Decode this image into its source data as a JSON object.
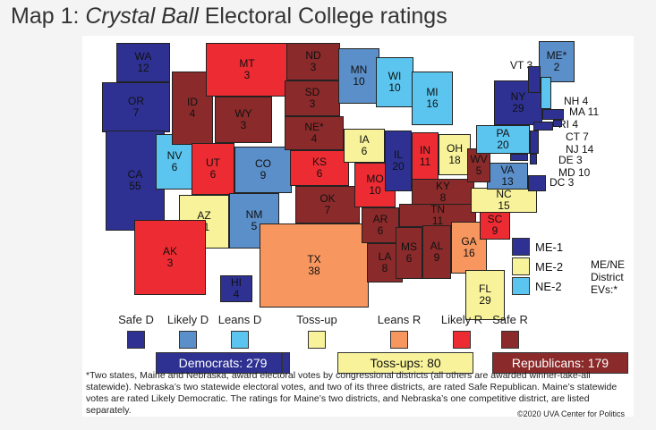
{
  "title": {
    "prefix": "Map 1: ",
    "italic": "Crystal Ball",
    "suffix": " Electoral College ratings"
  },
  "colors": {
    "safe_d": "#2e3192",
    "likely_d": "#5b8fc9",
    "leans_d": "#5bc5ef",
    "toss_up": "#f8f39a",
    "leans_r": "#f7975f",
    "likely_r": "#ed2b32",
    "safe_r": "#8b2a2a"
  },
  "states": [
    {
      "abbr": "WA",
      "ev": "12",
      "rating": "safe_d"
    },
    {
      "abbr": "OR",
      "ev": "7",
      "rating": "safe_d"
    },
    {
      "abbr": "CA",
      "ev": "55",
      "rating": "safe_d"
    },
    {
      "abbr": "NV",
      "ev": "6",
      "rating": "leans_d"
    },
    {
      "abbr": "ID",
      "ev": "4",
      "rating": "safe_r"
    },
    {
      "abbr": "MT",
      "ev": "3",
      "rating": "likely_r"
    },
    {
      "abbr": "WY",
      "ev": "3",
      "rating": "safe_r"
    },
    {
      "abbr": "UT",
      "ev": "6",
      "rating": "likely_r"
    },
    {
      "abbr": "CO",
      "ev": "9",
      "rating": "likely_d"
    },
    {
      "abbr": "AZ",
      "ev": "11",
      "rating": "toss_up"
    },
    {
      "abbr": "NM",
      "ev": "5",
      "rating": "likely_d"
    },
    {
      "abbr": "ND",
      "ev": "3",
      "rating": "safe_r"
    },
    {
      "abbr": "SD",
      "ev": "3",
      "rating": "safe_r"
    },
    {
      "abbr": "NE*",
      "ev": "4",
      "rating": "safe_r"
    },
    {
      "abbr": "KS",
      "ev": "6",
      "rating": "likely_r"
    },
    {
      "abbr": "OK",
      "ev": "7",
      "rating": "safe_r"
    },
    {
      "abbr": "TX",
      "ev": "38",
      "rating": "leans_r"
    },
    {
      "abbr": "MN",
      "ev": "10",
      "rating": "likely_d"
    },
    {
      "abbr": "IA",
      "ev": "6",
      "rating": "toss_up"
    },
    {
      "abbr": "MO",
      "ev": "10",
      "rating": "likely_r"
    },
    {
      "abbr": "AR",
      "ev": "6",
      "rating": "safe_r"
    },
    {
      "abbr": "LA",
      "ev": "8",
      "rating": "safe_r"
    },
    {
      "abbr": "WI",
      "ev": "10",
      "rating": "leans_d"
    },
    {
      "abbr": "IL",
      "ev": "20",
      "rating": "safe_d"
    },
    {
      "abbr": "MI",
      "ev": "16",
      "rating": "leans_d"
    },
    {
      "abbr": "IN",
      "ev": "11",
      "rating": "likely_r"
    },
    {
      "abbr": "OH",
      "ev": "18",
      "rating": "toss_up"
    },
    {
      "abbr": "KY",
      "ev": "8",
      "rating": "safe_r"
    },
    {
      "abbr": "TN",
      "ev": "11",
      "rating": "safe_r"
    },
    {
      "abbr": "MS",
      "ev": "6",
      "rating": "safe_r"
    },
    {
      "abbr": "AL",
      "ev": "9",
      "rating": "safe_r"
    },
    {
      "abbr": "GA",
      "ev": "16",
      "rating": "leans_r"
    },
    {
      "abbr": "FL",
      "ev": "29",
      "rating": "toss_up"
    },
    {
      "abbr": "SC",
      "ev": "9",
      "rating": "likely_r"
    },
    {
      "abbr": "NC",
      "ev": "15",
      "rating": "toss_up"
    },
    {
      "abbr": "VA",
      "ev": "13",
      "rating": "likely_d"
    },
    {
      "abbr": "WV",
      "ev": "5",
      "rating": "safe_r"
    },
    {
      "abbr": "PA",
      "ev": "20",
      "rating": "leans_d"
    },
    {
      "abbr": "NY",
      "ev": "29",
      "rating": "safe_d"
    },
    {
      "abbr": "ME*",
      "ev": "2",
      "rating": "likely_d"
    },
    {
      "abbr": "AK",
      "ev": "3",
      "rating": "likely_r"
    },
    {
      "abbr": "HI",
      "ev": "4",
      "rating": "safe_d"
    },
    {
      "abbr": "VT",
      "ev": "3",
      "rating": "safe_d"
    },
    {
      "abbr": "NH",
      "ev": "4",
      "rating": "leans_d"
    },
    {
      "abbr": "MA",
      "ev": "11",
      "rating": "safe_d"
    },
    {
      "abbr": "RI",
      "ev": "4",
      "rating": "safe_d"
    },
    {
      "abbr": "CT",
      "ev": "7",
      "rating": "safe_d"
    },
    {
      "abbr": "NJ",
      "ev": "14",
      "rating": "safe_d"
    },
    {
      "abbr": "DE",
      "ev": "3",
      "rating": "safe_d"
    },
    {
      "abbr": "MD",
      "ev": "10",
      "rating": "safe_d"
    },
    {
      "abbr": "DC",
      "ev": "3",
      "rating": "safe_d"
    }
  ],
  "district_legend": {
    "title": "ME/NE District EVs:*",
    "items": [
      {
        "label": "ME-1",
        "rating": "safe_d"
      },
      {
        "label": "ME-2",
        "rating": "toss_up"
      },
      {
        "label": "NE-2",
        "rating": "leans_d"
      }
    ]
  },
  "legend": [
    {
      "label": "Safe D",
      "rating": "safe_d"
    },
    {
      "label": "Likely D",
      "rating": "likely_d"
    },
    {
      "label": "Leans D",
      "rating": "leans_d"
    },
    {
      "label": "Toss-up",
      "rating": "toss_up"
    },
    {
      "label": "Leans R",
      "rating": "leans_r"
    },
    {
      "label": "Likely R",
      "rating": "likely_r"
    },
    {
      "label": "Safe R",
      "rating": "safe_r"
    }
  ],
  "totals": {
    "dem": "Democrats: 279",
    "toss": "Toss-ups: 80",
    "rep": "Republicans: 179"
  },
  "footnote": "*Two states, Maine and Nebraska, award electoral votes by congressional districts (all others are awarded winner-take-all statewide). Nebraska’s two statewide electoral votes, and two of its three districts, are rated Safe Republican. Maine’s statewide votes are rated Likely Democratic. The ratings for Maine’s two districts, and Nebraska’s one competitive district, are listed separately.",
  "copyright": "©2020 UVA Center for Politics"
}
